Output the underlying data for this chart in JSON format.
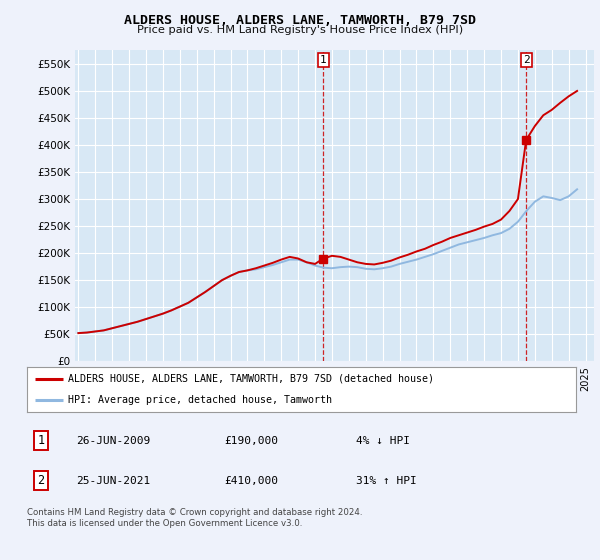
{
  "title": "ALDERS HOUSE, ALDERS LANE, TAMWORTH, B79 7SD",
  "subtitle": "Price paid vs. HM Land Registry's House Price Index (HPI)",
  "ylabel_ticks": [
    "£0",
    "£50K",
    "£100K",
    "£150K",
    "£200K",
    "£250K",
    "£300K",
    "£350K",
    "£400K",
    "£450K",
    "£500K",
    "£550K"
  ],
  "ytick_values": [
    0,
    50000,
    100000,
    150000,
    200000,
    250000,
    300000,
    350000,
    400000,
    450000,
    500000,
    550000
  ],
  "ylim": [
    0,
    575000
  ],
  "xlim_start": 1994.8,
  "xlim_end": 2025.5,
  "background_color": "#eef2fb",
  "plot_bg_color": "#d8e8f5",
  "grid_color": "#ffffff",
  "hpi_color": "#90b8e0",
  "price_color": "#cc0000",
  "transaction1_x": 2009.49,
  "transaction1_y": 190000,
  "transaction1_label": "1",
  "transaction2_x": 2021.49,
  "transaction2_y": 410000,
  "transaction2_label": "2",
  "legend_entry1": "ALDERS HOUSE, ALDERS LANE, TAMWORTH, B79 7SD (detached house)",
  "legend_entry2": "HPI: Average price, detached house, Tamworth",
  "table_row1": [
    "1",
    "26-JUN-2009",
    "£190,000",
    "4% ↓ HPI"
  ],
  "table_row2": [
    "2",
    "25-JUN-2021",
    "£410,000",
    "31% ↑ HPI"
  ],
  "footer": "Contains HM Land Registry data © Crown copyright and database right 2024.\nThis data is licensed under the Open Government Licence v3.0.",
  "hpi_years": [
    1995,
    1995.5,
    1996,
    1996.5,
    1997,
    1997.5,
    1998,
    1998.5,
    1999,
    1999.5,
    2000,
    2000.5,
    2001,
    2001.5,
    2002,
    2002.5,
    2003,
    2003.5,
    2004,
    2004.5,
    2005,
    2005.5,
    2006,
    2006.5,
    2007,
    2007.5,
    2008,
    2008.5,
    2009,
    2009.5,
    2010,
    2010.5,
    2011,
    2011.5,
    2012,
    2012.5,
    2013,
    2013.5,
    2014,
    2014.5,
    2015,
    2015.5,
    2016,
    2016.5,
    2017,
    2017.5,
    2018,
    2018.5,
    2019,
    2019.5,
    2020,
    2020.5,
    2021,
    2021.5,
    2022,
    2022.5,
    2023,
    2023.5,
    2024,
    2024.5
  ],
  "hpi_values": [
    52000,
    53000,
    55000,
    57000,
    61000,
    65000,
    69000,
    73000,
    78000,
    83000,
    88000,
    94000,
    101000,
    108000,
    118000,
    128000,
    139000,
    150000,
    158000,
    165000,
    168000,
    170000,
    174000,
    178000,
    183000,
    188000,
    188000,
    183000,
    177000,
    173000,
    172000,
    174000,
    175000,
    174000,
    171000,
    170000,
    172000,
    175000,
    180000,
    184000,
    188000,
    193000,
    198000,
    204000,
    210000,
    216000,
    220000,
    224000,
    228000,
    233000,
    237000,
    245000,
    258000,
    278000,
    295000,
    305000,
    302000,
    298000,
    305000,
    318000
  ],
  "price_years": [
    1995,
    1995.5,
    1996,
    1996.5,
    1997,
    1997.5,
    1998,
    1998.5,
    1999,
    1999.5,
    2000,
    2000.5,
    2001,
    2001.5,
    2002,
    2002.5,
    2003,
    2003.5,
    2004,
    2004.5,
    2005,
    2005.5,
    2006,
    2006.5,
    2007,
    2007.5,
    2008,
    2008.5,
    2009,
    2009.49,
    2009.5,
    2010,
    2010.5,
    2011,
    2011.5,
    2012,
    2012.5,
    2013,
    2013.5,
    2014,
    2014.5,
    2015,
    2015.5,
    2016,
    2016.5,
    2017,
    2017.5,
    2018,
    2018.5,
    2019,
    2019.5,
    2020,
    2020.5,
    2021,
    2021.49,
    2021.5,
    2022,
    2022.5,
    2023,
    2023.5,
    2024,
    2024.5
  ],
  "price_values": [
    52000,
    53000,
    55000,
    57000,
    61000,
    65000,
    69000,
    73000,
    78000,
    83000,
    88000,
    94000,
    101000,
    108000,
    118000,
    128000,
    139000,
    150000,
    158000,
    165000,
    168000,
    172000,
    177000,
    182000,
    188000,
    193000,
    190000,
    183000,
    180000,
    190000,
    190000,
    195000,
    193000,
    188000,
    183000,
    180000,
    179000,
    182000,
    186000,
    192000,
    197000,
    203000,
    208000,
    215000,
    221000,
    228000,
    233000,
    238000,
    243000,
    249000,
    254000,
    262000,
    278000,
    300000,
    410000,
    410000,
    435000,
    455000,
    465000,
    478000,
    490000,
    500000
  ]
}
